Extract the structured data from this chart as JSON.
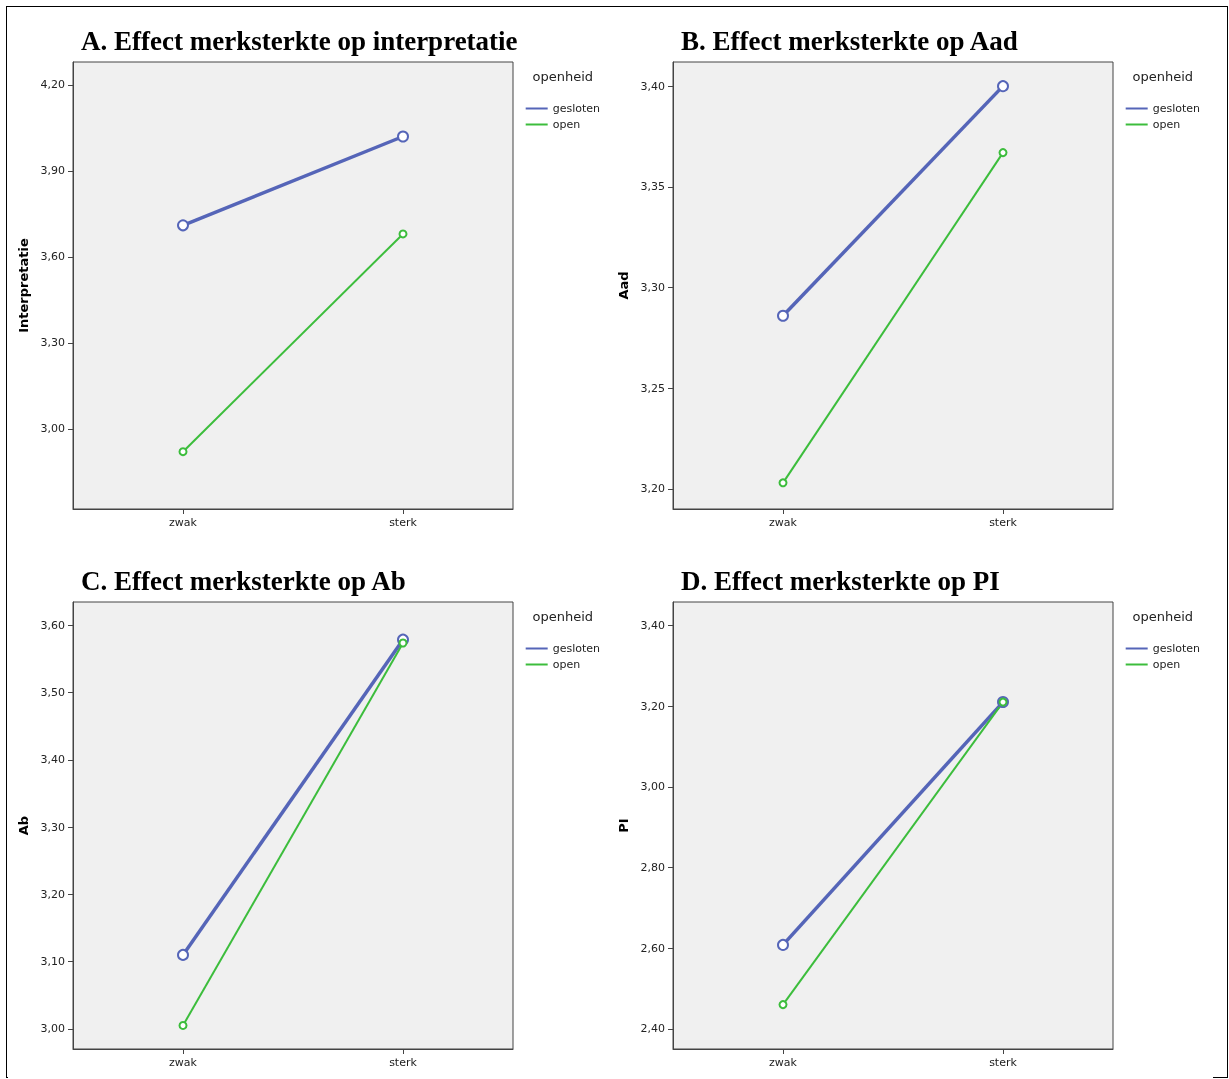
{
  "chart_data": [
    {
      "type": "line",
      "title": "A. Effect merksterkte op interpretatie",
      "ylabel": "Interpretatie",
      "legend_title": "openheid",
      "categories": [
        "zwak",
        "sterk"
      ],
      "series": [
        {
          "name": "gesloten",
          "color": "#5565b8",
          "values": [
            3.71,
            4.02
          ]
        },
        {
          "name": "open",
          "color": "#3cbd3c",
          "values": [
            2.92,
            3.68
          ]
        }
      ],
      "ylim": [
        2.72,
        4.28
      ],
      "yticks": [
        {
          "value": 3.0,
          "label": "3,00"
        },
        {
          "value": 3.3,
          "label": "3,30"
        },
        {
          "value": 3.6,
          "label": "3,60"
        },
        {
          "value": 3.9,
          "label": "3,90"
        },
        {
          "value": 4.2,
          "label": "4,20"
        }
      ],
      "grid": false,
      "legend": "top right",
      "marker": "circle",
      "line_style": "solid"
    },
    {
      "type": "line",
      "title": "B. Effect merksterkte op Aad",
      "ylabel": "Aad",
      "legend_title": "openheid",
      "categories": [
        "zwak",
        "sterk"
      ],
      "series": [
        {
          "name": "gesloten",
          "color": "#5565b8",
          "values": [
            3.286,
            3.4
          ]
        },
        {
          "name": "open",
          "color": "#3cbd3c",
          "values": [
            3.203,
            3.367
          ]
        }
      ],
      "ylim": [
        3.19,
        3.412
      ],
      "yticks": [
        {
          "value": 3.2,
          "label": "3,20"
        },
        {
          "value": 3.25,
          "label": "3,25"
        },
        {
          "value": 3.3,
          "label": "3,30"
        },
        {
          "value": 3.35,
          "label": "3,35"
        },
        {
          "value": 3.4,
          "label": "3,40"
        }
      ],
      "grid": false,
      "legend": "top right",
      "marker": "circle",
      "line_style": "solid"
    },
    {
      "type": "line",
      "title": "C. Effect merksterkte op Ab",
      "ylabel": "Ab",
      "legend_title": "openheid",
      "categories": [
        "zwak",
        "sterk"
      ],
      "series": [
        {
          "name": "gesloten",
          "color": "#5565b8",
          "values": [
            3.11,
            3.579
          ]
        },
        {
          "name": "open",
          "color": "#3cbd3c",
          "values": [
            3.005,
            3.574
          ]
        }
      ],
      "ylim": [
        2.97,
        3.635
      ],
      "yticks": [
        {
          "value": 3.0,
          "label": "3,00"
        },
        {
          "value": 3.1,
          "label": "3,10"
        },
        {
          "value": 3.2,
          "label": "3,20"
        },
        {
          "value": 3.3,
          "label": "3,30"
        },
        {
          "value": 3.4,
          "label": "3,40"
        },
        {
          "value": 3.5,
          "label": "3,50"
        },
        {
          "value": 3.6,
          "label": "3,60"
        }
      ],
      "grid": false,
      "legend": "top right",
      "marker": "circle",
      "line_style": "solid"
    },
    {
      "type": "line",
      "title": "D. Effect merksterkte op PI",
      "ylabel": "PI",
      "legend_title": "openheid",
      "categories": [
        "zwak",
        "sterk"
      ],
      "series": [
        {
          "name": "gesloten",
          "color": "#5565b8",
          "values": [
            2.608,
            3.21
          ]
        },
        {
          "name": "open",
          "color": "#3cbd3c",
          "values": [
            2.46,
            3.21
          ]
        }
      ],
      "ylim": [
        2.35,
        3.458
      ],
      "yticks": [
        {
          "value": 2.4,
          "label": "2,40"
        },
        {
          "value": 2.6,
          "label": "2,60"
        },
        {
          "value": 2.8,
          "label": "2,80"
        },
        {
          "value": 3.0,
          "label": "3,00"
        },
        {
          "value": 3.2,
          "label": "3,20"
        },
        {
          "value": 3.4,
          "label": "3,40"
        }
      ],
      "grid": false,
      "legend": "top right",
      "marker": "circle",
      "line_style": "solid"
    }
  ]
}
